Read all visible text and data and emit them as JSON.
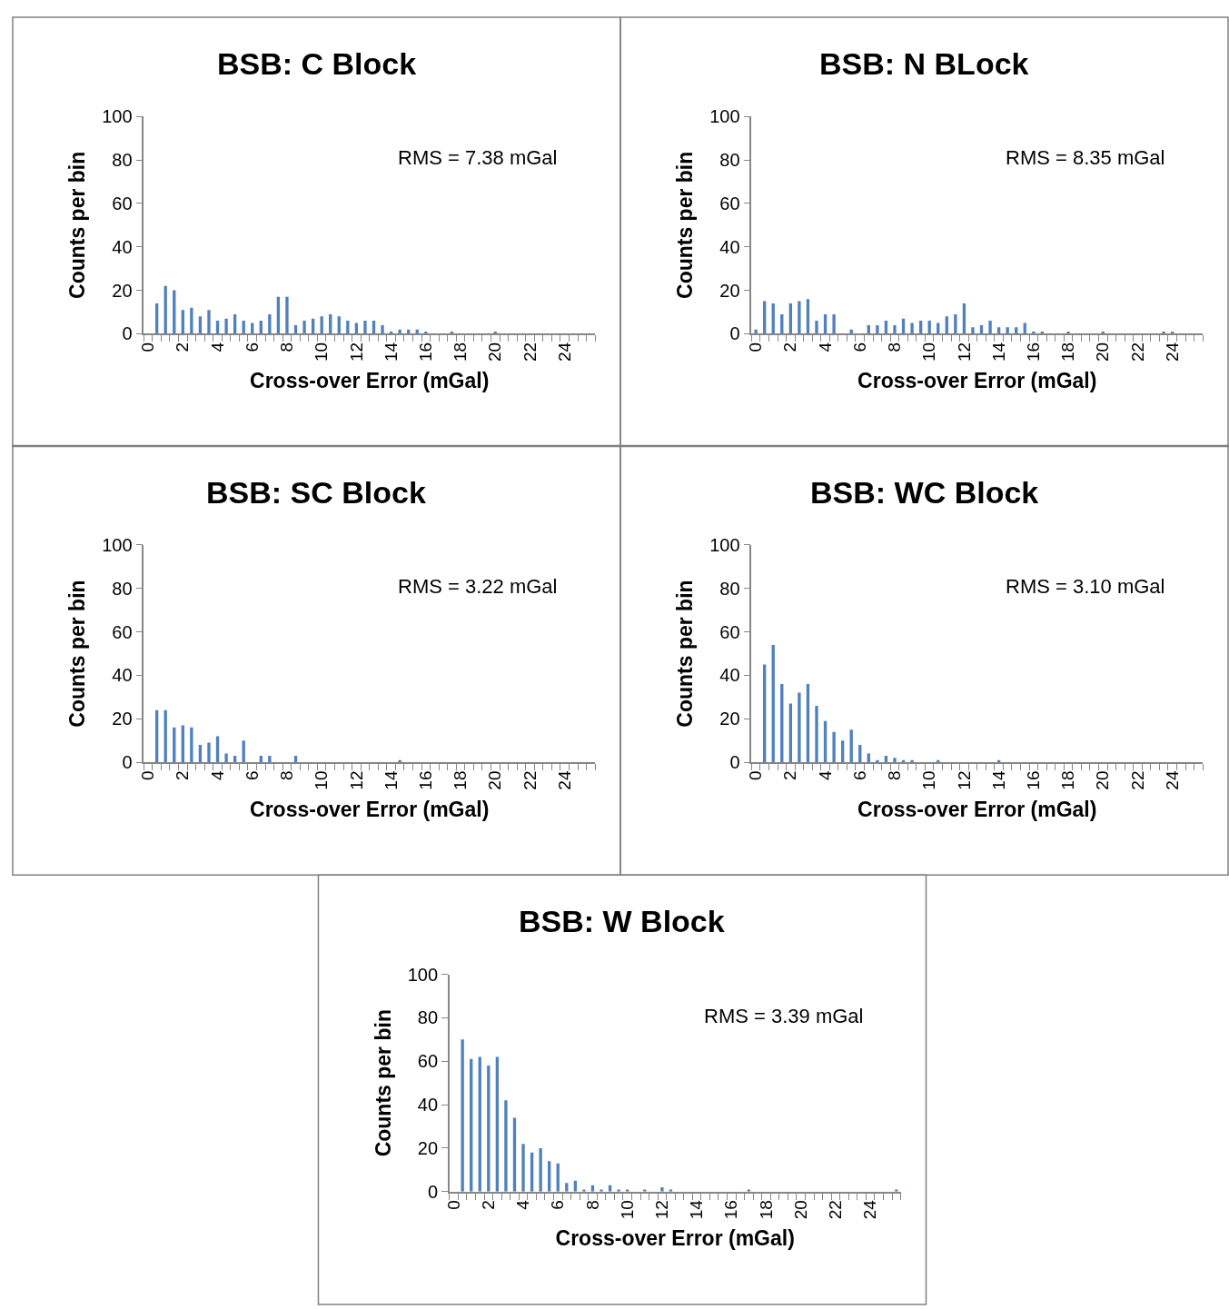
{
  "chart_data": [
    {
      "type": "bar",
      "title": "BSB: C Block",
      "xlabel": "Cross-over Error (mGal)",
      "ylabel": "Counts per bin",
      "color": "#4f81bd",
      "ylim": [
        0,
        100
      ],
      "yticks": [
        0,
        20,
        40,
        60,
        80,
        100
      ],
      "annotations": [
        "RMS = 7.38 mGal"
      ],
      "categories": [
        "0",
        null,
        null,
        null,
        "2",
        null,
        null,
        null,
        "4",
        null,
        null,
        null,
        "6",
        null,
        null,
        null,
        "8",
        null,
        null,
        null,
        "10",
        null,
        null,
        null,
        "12",
        null,
        null,
        null,
        "14",
        null,
        null,
        null,
        "16",
        null,
        null,
        null,
        "18",
        null,
        null,
        null,
        "20",
        null,
        null,
        null,
        "22",
        null,
        null,
        null,
        "24",
        null,
        null,
        null
      ],
      "values": [
        0,
        14,
        22,
        20,
        11,
        12,
        8,
        11,
        6,
        7,
        9,
        6,
        5,
        6,
        9,
        17,
        17,
        4,
        6,
        7,
        8,
        9,
        8,
        6,
        5,
        6,
        6,
        4,
        1,
        2,
        2,
        2,
        1,
        0,
        0,
        1,
        0,
        0,
        0,
        0,
        1,
        0,
        0,
        0,
        0,
        0,
        0,
        0,
        0,
        0,
        0,
        0
      ]
    },
    {
      "type": "bar",
      "title": "BSB: N BLock",
      "xlabel": "Cross-over Error (mGal)",
      "ylabel": "Counts per bin",
      "color": "#4f81bd",
      "ylim": [
        0,
        100
      ],
      "yticks": [
        0,
        20,
        40,
        60,
        80,
        100
      ],
      "annotations": [
        "RMS = 8.35 mGal"
      ],
      "categories": [
        "0",
        null,
        null,
        null,
        "2",
        null,
        null,
        null,
        "4",
        null,
        null,
        null,
        "6",
        null,
        null,
        null,
        "8",
        null,
        null,
        null,
        "10",
        null,
        null,
        null,
        "12",
        null,
        null,
        null,
        "14",
        null,
        null,
        null,
        "16",
        null,
        null,
        null,
        "18",
        null,
        null,
        null,
        "20",
        null,
        null,
        null,
        "22",
        null,
        null,
        null,
        "24",
        null,
        null,
        null
      ],
      "values": [
        2,
        15,
        14,
        9,
        14,
        15,
        16,
        6,
        9,
        9,
        0,
        2,
        0,
        4,
        4,
        6,
        4,
        7,
        5,
        6,
        6,
        5,
        8,
        9,
        14,
        3,
        4,
        6,
        3,
        3,
        3,
        5,
        1,
        1,
        0,
        0,
        1,
        0,
        0,
        0,
        1,
        0,
        0,
        0,
        0,
        0,
        0,
        1,
        1,
        0,
        0,
        0
      ]
    },
    {
      "type": "bar",
      "title": "BSB: SC Block",
      "xlabel": "Cross-over Error (mGal)",
      "ylabel": "Counts per bin",
      "color": "#4f81bd",
      "ylim": [
        0,
        100
      ],
      "yticks": [
        0,
        20,
        40,
        60,
        80,
        100
      ],
      "annotations": [
        "RMS = 3.22 mGal"
      ],
      "categories": [
        "0",
        null,
        null,
        null,
        "2",
        null,
        null,
        null,
        "4",
        null,
        null,
        null,
        "6",
        null,
        null,
        null,
        "8",
        null,
        null,
        null,
        "10",
        null,
        null,
        null,
        "12",
        null,
        null,
        null,
        "14",
        null,
        null,
        null,
        "16",
        null,
        null,
        null,
        "18",
        null,
        null,
        null,
        "20",
        null,
        null,
        null,
        "22",
        null,
        null,
        null,
        "24",
        null,
        null,
        null
      ],
      "values": [
        0,
        24,
        24,
        16,
        17,
        16,
        8,
        9,
        12,
        4,
        3,
        10,
        0,
        3,
        3,
        0,
        0,
        3,
        0,
        0,
        0,
        0,
        0,
        0,
        0,
        0,
        0,
        0,
        0,
        1,
        0,
        0,
        0,
        0,
        0,
        0,
        0,
        0,
        0,
        0,
        0,
        0,
        0,
        0,
        0,
        0,
        0,
        0,
        0,
        0,
        0,
        0
      ]
    },
    {
      "type": "bar",
      "title": "BSB: WC Block",
      "xlabel": "Cross-over Error (mGal)",
      "ylabel": "Counts per bin",
      "color": "#4f81bd",
      "ylim": [
        0,
        100
      ],
      "yticks": [
        0,
        20,
        40,
        60,
        80,
        100
      ],
      "annotations": [
        "RMS = 3.10 mGal"
      ],
      "categories": [
        "0",
        null,
        null,
        null,
        "2",
        null,
        null,
        null,
        "4",
        null,
        null,
        null,
        "6",
        null,
        null,
        null,
        "8",
        null,
        null,
        null,
        "10",
        null,
        null,
        null,
        "12",
        null,
        null,
        null,
        "14",
        null,
        null,
        null,
        "16",
        null,
        null,
        null,
        "18",
        null,
        null,
        null,
        "20",
        null,
        null,
        null,
        "22",
        null,
        null,
        null,
        "24",
        null,
        null,
        null
      ],
      "values": [
        0,
        45,
        54,
        36,
        27,
        32,
        36,
        26,
        19,
        14,
        10,
        15,
        8,
        4,
        1,
        3,
        2,
        1,
        1,
        0,
        0,
        1,
        0,
        0,
        0,
        0,
        0,
        0,
        1,
        0,
        0,
        0,
        0,
        0,
        0,
        0,
        0,
        0,
        0,
        0,
        0,
        0,
        0,
        0,
        0,
        0,
        0,
        0,
        0,
        0,
        0,
        0
      ]
    },
    {
      "type": "bar",
      "title": "BSB: W Block",
      "xlabel": "Cross-over Error (mGal)",
      "ylabel": "Counts per bin",
      "color": "#4f81bd",
      "ylim": [
        0,
        100
      ],
      "yticks": [
        0,
        20,
        40,
        60,
        80,
        100
      ],
      "annotations": [
        "RMS = 3.39 mGal"
      ],
      "categories": [
        "0",
        null,
        null,
        null,
        "2",
        null,
        null,
        null,
        "4",
        null,
        null,
        null,
        "6",
        null,
        null,
        null,
        "8",
        null,
        null,
        null,
        "10",
        null,
        null,
        null,
        "12",
        null,
        null,
        null,
        "14",
        null,
        null,
        null,
        "16",
        null,
        null,
        null,
        "18",
        null,
        null,
        null,
        "20",
        null,
        null,
        null,
        "22",
        null,
        null,
        null,
        "24",
        null,
        null,
        null
      ],
      "values": [
        0,
        70,
        61,
        62,
        58,
        62,
        42,
        34,
        22,
        18,
        20,
        14,
        13,
        4,
        5,
        1,
        3,
        1,
        3,
        1,
        1,
        0,
        1,
        0,
        2,
        1,
        0,
        0,
        0,
        0,
        0,
        0,
        0,
        0,
        1,
        0,
        0,
        0,
        0,
        0,
        0,
        0,
        0,
        0,
        0,
        0,
        0,
        0,
        0,
        0,
        0,
        1
      ]
    }
  ]
}
